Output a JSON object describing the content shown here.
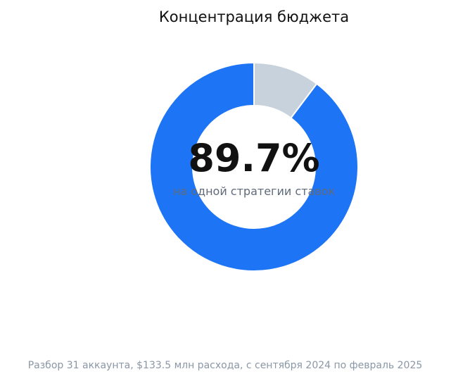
{
  "chart_data": {
    "type": "pie",
    "title": "Концентрация бюджета",
    "center_value": "89.7%",
    "center_label": "на одной стратегии ставок",
    "footnote": "Разбор 31 аккаунта, $133.5 млн расхода, с сентября 2024 по февраль 2025",
    "hole": "donut",
    "slices": [
      {
        "value": 89.7,
        "color": "#1d74f5"
      },
      {
        "value": 10.3,
        "color": "#c8d2dc"
      }
    ]
  }
}
